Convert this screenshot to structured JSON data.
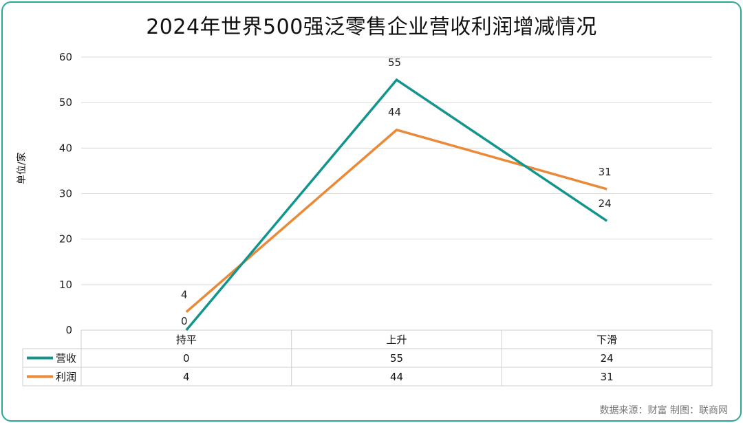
{
  "header": {
    "title": "2024年世界500强泛零售企业营收利润增减情况",
    "ylabel": "单位/家",
    "source": "数据来源：财富  制图：联商网"
  },
  "chart_data": {
    "type": "line",
    "categories": [
      "持平",
      "上升",
      "下滑"
    ],
    "series": [
      {
        "name": "营收",
        "values": [
          0,
          55,
          24
        ],
        "color": "#13958e"
      },
      {
        "name": "利润",
        "values": [
          4,
          44,
          31
        ],
        "color": "#ea8938"
      }
    ],
    "ylim": [
      0,
      60
    ],
    "yticks": [
      0,
      10,
      20,
      30,
      40,
      50,
      60
    ],
    "grid": true,
    "legend": "data-table"
  }
}
